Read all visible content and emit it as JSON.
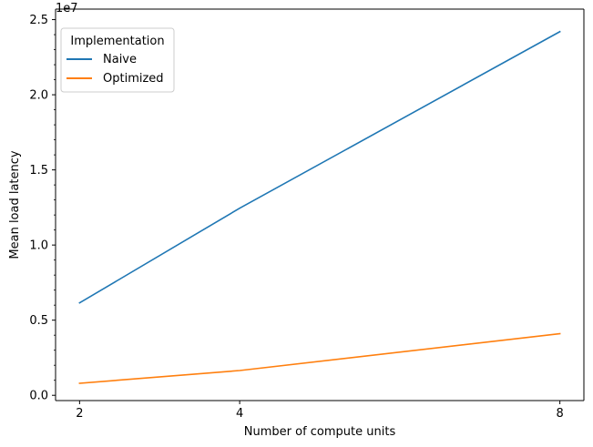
{
  "chart_data": {
    "type": "line",
    "xlabel": "Number of compute units",
    "ylabel": "Mean load latency",
    "y_offset_label": "1e7",
    "x_ticks": [
      2,
      4,
      8
    ],
    "x_tick_labels": [
      "2",
      "4",
      "8"
    ],
    "xlim": [
      1.7,
      8.3
    ],
    "y_ticks": [
      0,
      5000000,
      10000000,
      15000000,
      20000000,
      25000000
    ],
    "y_tick_labels": [
      "0.0",
      "0.5",
      "1.0",
      "1.5",
      "2.0",
      "2.5"
    ],
    "ylim": [
      -350000,
      25700000
    ],
    "grid": false,
    "legend": {
      "title": "Implementation",
      "placement": "top-left"
    },
    "x": [
      2,
      4,
      8
    ],
    "series": [
      {
        "name": "Naive",
        "color": "#1f77b4",
        "values": [
          6150000,
          12450000,
          24200000
        ]
      },
      {
        "name": "Optimized",
        "color": "#ff7f0e",
        "values": [
          800000,
          1650000,
          4100000
        ]
      }
    ]
  }
}
